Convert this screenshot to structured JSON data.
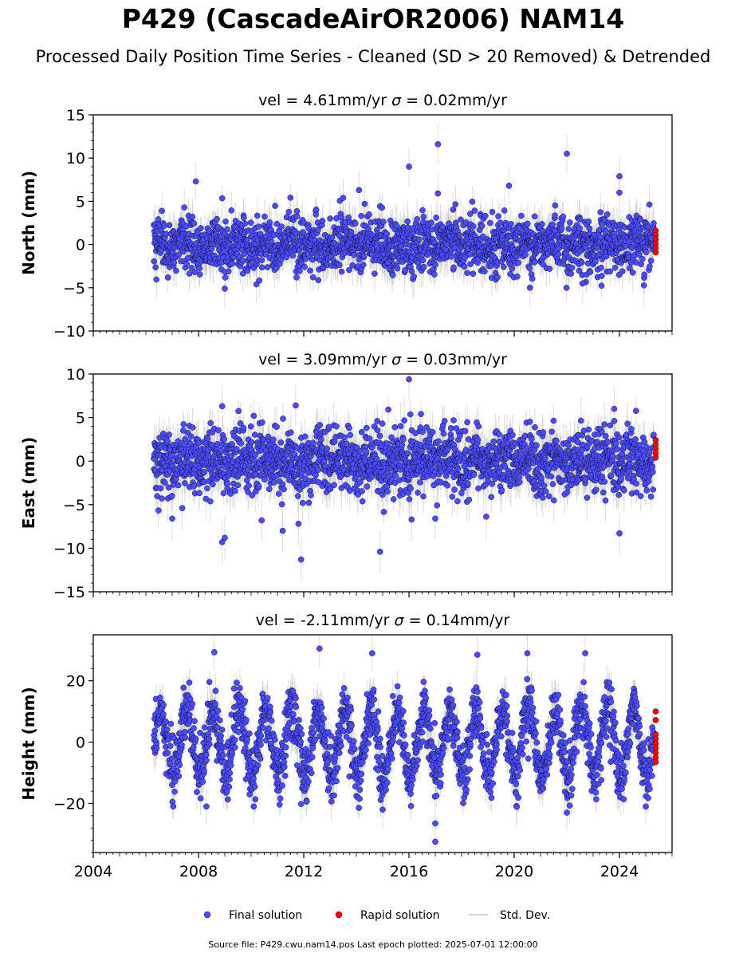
{
  "figure": {
    "title": "P429 (CascadeAirOR2006) NAM14",
    "subtitle": "Processed Daily Position Time Series - Cleaned (SD > 20 Removed) & Detrended",
    "footer": "Source file: P429.cwu.nam14.pos  Last epoch plotted: 2025-07-01 12:00:00"
  },
  "legend": {
    "items": [
      {
        "label": "Final solution",
        "kind": "marker",
        "color": "#4b4bff"
      },
      {
        "label": "Rapid solution",
        "kind": "marker",
        "color": "#ff0000"
      },
      {
        "label": "Std. Dev.",
        "kind": "line",
        "color": "#c8c8c8"
      }
    ]
  },
  "colors": {
    "final": "#4b4bff",
    "rapid": "#ff0000",
    "stddev": "#c0c0c0",
    "marker_edge": "#000000"
  },
  "chart_data": [
    {
      "type": "scatter",
      "title_parts": {
        "prefix": "vel = 4.61mm/yr   ",
        "sigma": "σ",
        "suffix": " = 0.02mm/yr"
      },
      "ylabel": "North (mm)",
      "xlim": [
        2004,
        2026
      ],
      "ylim": [
        -10,
        15
      ],
      "yticks": [
        -10,
        -5,
        0,
        5,
        10,
        15
      ],
      "ytick_labels": [
        "−10",
        "−5",
        "0",
        "5",
        "10",
        "15"
      ],
      "xticks": [
        2004,
        2008,
        2012,
        2016,
        2020,
        2024
      ],
      "xtick_labels": [],
      "data_span": [
        2006.3,
        2025.3
      ],
      "typical_spread": 1.6,
      "annual_amplitude": 0.4,
      "typical_error": 1.7,
      "series": [
        {
          "name": "Final solution",
          "outliers": [
            [
              2009.0,
              -5.1
            ],
            [
              2007.9,
              7.3
            ],
            [
              2010.2,
              -4.6
            ],
            [
              2013.5,
              5.4
            ],
            [
              2014.1,
              6.3
            ],
            [
              2016.0,
              9.0
            ],
            [
              2017.1,
              11.6
            ],
            [
              2017.1,
              5.9
            ],
            [
              2019.8,
              6.8
            ],
            [
              2020.6,
              -5.0
            ],
            [
              2022.0,
              10.5
            ],
            [
              2024.0,
              7.9
            ],
            [
              2024.0,
              6.0
            ],
            [
              2022.6,
              -4.5
            ]
          ]
        },
        {
          "name": "Rapid solution",
          "span": [
            2025.3,
            2025.45
          ],
          "points": [
            [
              2025.38,
              1.6
            ],
            [
              2025.38,
              1.1
            ],
            [
              2025.38,
              0.6
            ],
            [
              2025.38,
              0.1
            ],
            [
              2025.38,
              -0.4
            ],
            [
              2025.38,
              -0.9
            ]
          ]
        }
      ]
    },
    {
      "type": "scatter",
      "title_parts": {
        "prefix": "vel = 3.09mm/yr   ",
        "sigma": "σ",
        "suffix": " = 0.03mm/yr"
      },
      "ylabel": "East (mm)",
      "xlim": [
        2004,
        2026
      ],
      "ylim": [
        -15,
        10
      ],
      "yticks": [
        -15,
        -10,
        -5,
        0,
        5,
        10
      ],
      "ytick_labels": [
        "−15",
        "−10",
        "−5",
        "0",
        "5",
        "10"
      ],
      "xticks": [
        2004,
        2008,
        2012,
        2016,
        2020,
        2024
      ],
      "xtick_labels": [],
      "data_span": [
        2006.3,
        2025.3
      ],
      "typical_spread": 1.8,
      "annual_amplitude": 0.5,
      "typical_error": 1.9,
      "series": [
        {
          "name": "Final solution",
          "outliers": [
            [
              2016.0,
              9.4
            ],
            [
              2008.9,
              6.3
            ],
            [
              2011.9,
              -11.3
            ],
            [
              2014.9,
              -10.4
            ],
            [
              2008.9,
              -9.3
            ],
            [
              2009.0,
              -8.8
            ],
            [
              2011.2,
              -8.0
            ],
            [
              2011.8,
              -7.2
            ],
            [
              2024.0,
              -8.3
            ],
            [
              2023.8,
              6.0
            ],
            [
              2007.0,
              -6.6
            ],
            [
              2016.1,
              -6.7
            ],
            [
              2017.0,
              -6.6
            ],
            [
              2010.4,
              -6.8
            ]
          ]
        },
        {
          "name": "Rapid solution",
          "span": [
            2025.3,
            2025.45
          ],
          "points": [
            [
              2025.38,
              2.4
            ],
            [
              2025.38,
              1.9
            ],
            [
              2025.38,
              1.4
            ],
            [
              2025.38,
              0.9
            ],
            [
              2025.38,
              0.4
            ]
          ]
        }
      ]
    },
    {
      "type": "scatter",
      "title_parts": {
        "prefix": "vel = -2.11mm/yr   ",
        "sigma": "σ",
        "suffix": " = 0.14mm/yr"
      },
      "ylabel": "Height (mm)",
      "xlim": [
        2004,
        2026
      ],
      "ylim": [
        -36,
        35
      ],
      "yticks": [
        -20,
        0,
        20
      ],
      "ytick_labels": [
        "−20",
        "0",
        "20"
      ],
      "xticks": [
        2004,
        2008,
        2012,
        2016,
        2020,
        2024
      ],
      "xtick_labels": [
        "2004",
        "2008",
        "2012",
        "2016",
        "2020",
        "2024"
      ],
      "data_span": [
        2006.3,
        2025.3
      ],
      "typical_spread": 4.5,
      "annual_amplitude": 11,
      "typical_error": 4.5,
      "series": [
        {
          "name": "Final solution",
          "outliers": [
            [
              2017.0,
              -32.5
            ],
            [
              2017.0,
              -26.5
            ],
            [
              2012.6,
              30.5
            ],
            [
              2008.6,
              29.3
            ],
            [
              2014.6,
              29.0
            ],
            [
              2020.5,
              29.0
            ],
            [
              2022.7,
              29.0
            ],
            [
              2018.6,
              28.5
            ],
            [
              2008.3,
              -21.0
            ],
            [
              2010.1,
              -21.0
            ],
            [
              2015.0,
              -22.0
            ],
            [
              2022.0,
              -23.0
            ],
            [
              2011.9,
              -20.2
            ],
            [
              2025.0,
              -21.0
            ]
          ]
        },
        {
          "name": "Rapid solution",
          "span": [
            2025.3,
            2025.45
          ],
          "points": [
            [
              2025.38,
              10.0
            ],
            [
              2025.38,
              7.2
            ],
            [
              2025.38,
              2.5
            ],
            [
              2025.38,
              1.0
            ],
            [
              2025.38,
              -0.5
            ],
            [
              2025.38,
              -2.0
            ],
            [
              2025.38,
              -3.5
            ],
            [
              2025.38,
              -5.0
            ],
            [
              2025.38,
              -6.5
            ]
          ]
        }
      ]
    }
  ]
}
